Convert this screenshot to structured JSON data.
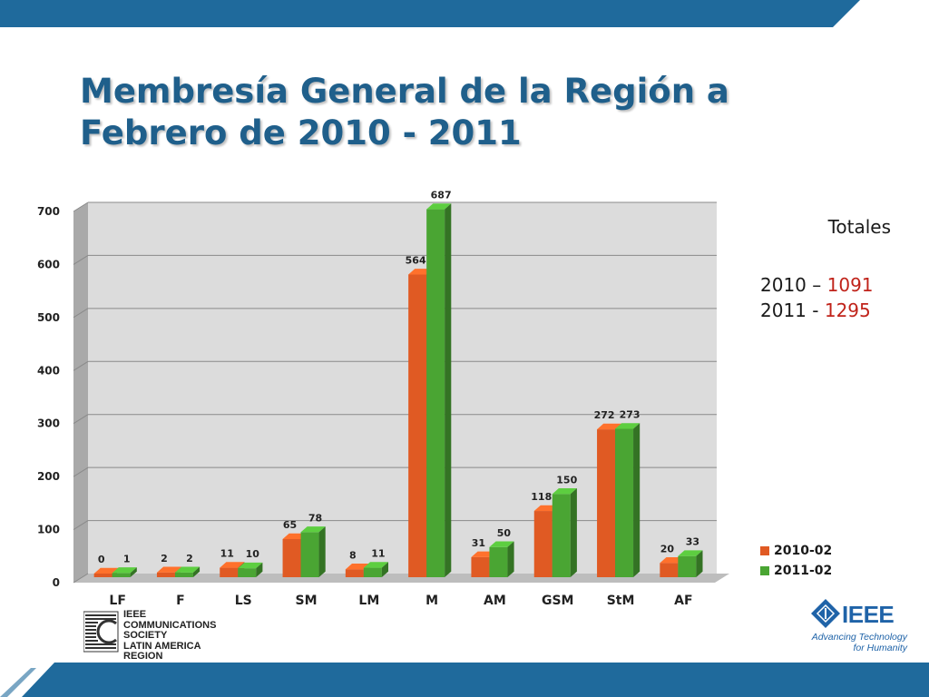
{
  "slide": {
    "title_line1": "Membresía General de la Región a",
    "title_line2": "Febrero de 2010 - 2011",
    "colors": {
      "band": "#1f6a9c",
      "title": "#1f5f8b",
      "total_number": "#c0231a"
    }
  },
  "totals": {
    "heading": "Totales",
    "row1_label": "2010 – ",
    "row1_value": "1091",
    "row2_label": "2011 - ",
    "row2_value": "1295"
  },
  "logos": {
    "left_lines": [
      "IEEE",
      "COMMUNICATIONS",
      "SOCIETY",
      "LATIN AMERICA REGION"
    ],
    "right_word": "IEEE",
    "right_tag_line1": "Advancing Technology",
    "right_tag_line2": "for Humanity"
  },
  "chart_data": {
    "type": "bar",
    "categories": [
      "LF",
      "F",
      "LS",
      "SM",
      "LM",
      "M",
      "AM",
      "GSM",
      "StM",
      "AF"
    ],
    "series": [
      {
        "name": "2010-02",
        "values": [
          0,
          2,
          11,
          65,
          8,
          564,
          31,
          118,
          272,
          20
        ],
        "color": "#e05a23"
      },
      {
        "name": "2011-02",
        "values": [
          1,
          2,
          10,
          78,
          11,
          687,
          50,
          150,
          273,
          33
        ],
        "color": "#4aa533"
      }
    ],
    "yticks": [
      0,
      100,
      200,
      300,
      400,
      500,
      600,
      700
    ],
    "ylim": [
      0,
      700
    ],
    "grid": true,
    "legend_position": "bottom-right",
    "style": "3d-clustered-columns"
  }
}
